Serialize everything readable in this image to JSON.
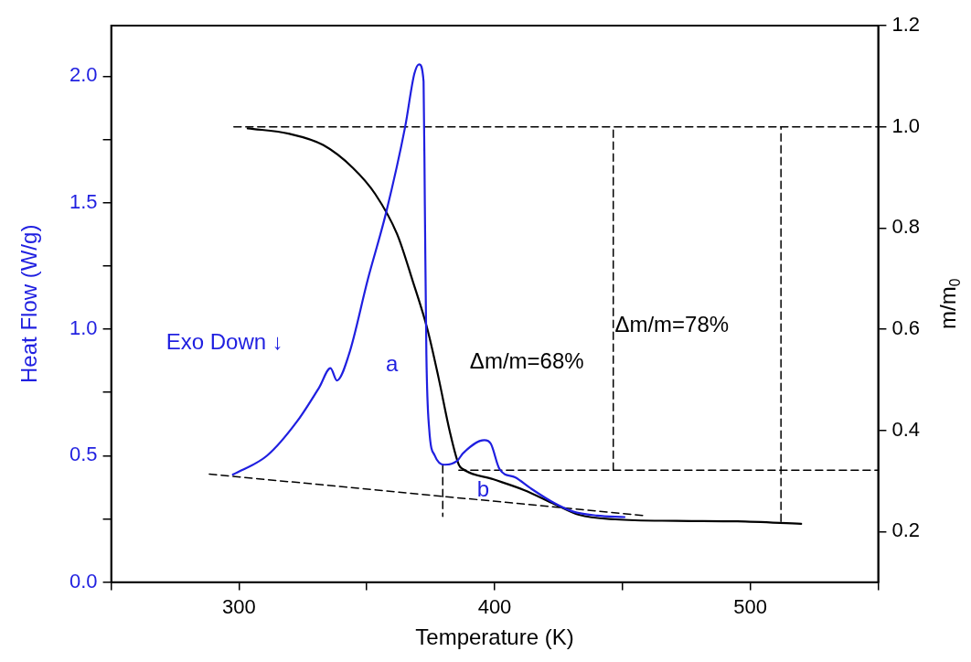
{
  "chart_data": {
    "type": "line",
    "xlabel": "Temperature (K)",
    "ylabel": "Heat Flow (W/g)",
    "y2label": "m/m$_{0}$",
    "xlim": [
      250,
      550
    ],
    "xticks": [
      {
        "value": 250,
        "label": null
      },
      300,
      {
        "value": 350,
        "label": null
      },
      400,
      {
        "value": 450,
        "label": null
      },
      500,
      {
        "value": 550,
        "label": null
      }
    ],
    "ylim": [
      0,
      2.2
    ],
    "yticks": [
      {
        "value": 0,
        "label": "0.0"
      },
      {
        "value": 0.25,
        "label": null
      },
      0.5,
      {
        "value": 0.75,
        "label": null
      },
      {
        "value": 1,
        "label": "1.0"
      },
      {
        "value": 1.25,
        "label": null
      },
      1.5,
      {
        "value": 1.75,
        "label": null
      },
      {
        "value": 2,
        "label": "2.0"
      }
    ],
    "y2lim": [
      0.1,
      1.2
    ],
    "y2ticks": [
      0.2,
      0.4,
      0.6,
      0.8,
      {
        "value": 1,
        "label": "1.0"
      },
      1.2
    ],
    "grid": false,
    "legend": false,
    "marker": "none",
    "series": [
      {
        "color": "#1f1fe0",
        "axis": "y",
        "line_style": "solid",
        "x": [
          297.6,
          311,
          322.7,
          331.4,
          335.8,
          338.3,
          343,
          350.4,
          357.6,
          365,
          368.6,
          370.5,
          372.2,
          372.7,
          373.3,
          374.4,
          376.6,
          380.3,
          385.4,
          387.7,
          396,
          398.5,
          402,
          408,
          413.9,
          423.4,
          430.6,
          440,
          450.8
        ],
        "values": [
          0.425,
          0.5,
          0.635,
          0.77,
          0.846,
          0.797,
          0.9,
          1.197,
          1.463,
          1.8,
          2.01,
          2.047,
          1.98,
          1.49,
          0.9,
          0.605,
          0.5,
          0.464,
          0.48,
          0.51,
          0.561,
          0.547,
          0.445,
          0.414,
          0.372,
          0.312,
          0.279,
          0.263,
          0.257
        ]
      },
      {
        "color": "#000000",
        "axis": "y2",
        "line_style": "solid",
        "x": [
          303.4,
          319.8,
          332.9,
          344.5,
          353.3,
          362,
          367.9,
          373.7,
          378.1,
          382.4,
          386,
          387.7,
          399.6,
          411.5,
          423.5,
          433,
          447.2,
          471,
          494.9,
          519.9
        ],
        "values": [
          0.997,
          0.986,
          0.964,
          0.919,
          0.867,
          0.786,
          0.696,
          0.6,
          0.503,
          0.399,
          0.332,
          0.323,
          0.303,
          0.282,
          0.254,
          0.233,
          0.224,
          0.221,
          0.22,
          0.215
        ]
      },
      {
        "type": "line",
        "color": "#000000",
        "axis": "y2",
        "line_style": "dashed",
        "x": [
          298,
          550
        ],
        "values": [
          1,
          1
        ]
      },
      {
        "type": "line",
        "color": "#000000",
        "axis": "y2",
        "line_style": "dashed",
        "x": [
          386,
          550
        ],
        "values": [
          0.321,
          0.321
        ]
      },
      {
        "type": "line",
        "color": "#000000",
        "axis": "y2",
        "line_style": "dashed",
        "x": [
          446.4,
          446.4
        ],
        "values": [
          0.321,
          1
        ]
      },
      {
        "type": "line",
        "color": "#000000",
        "axis": "y2",
        "line_style": "dashed",
        "x": [
          512,
          512
        ],
        "values": [
          0.22,
          1
        ]
      },
      {
        "type": "line",
        "color": "#000000",
        "axis": "y",
        "line_style": "dashed",
        "x": [
          379.7,
          379.7
        ],
        "values": [
          0.46,
          0.26
        ]
      },
      {
        "type": "line",
        "color": "#000000",
        "axis": "y",
        "line_style": "dashed",
        "x": [
          288.4,
          458.6
        ],
        "values": [
          0.427,
          0.263
        ]
      }
    ],
    "annotations": [
      "Exo Down ↓",
      "a",
      "b",
      "Δm/m=68%",
      "Δm/m=78%"
    ]
  }
}
